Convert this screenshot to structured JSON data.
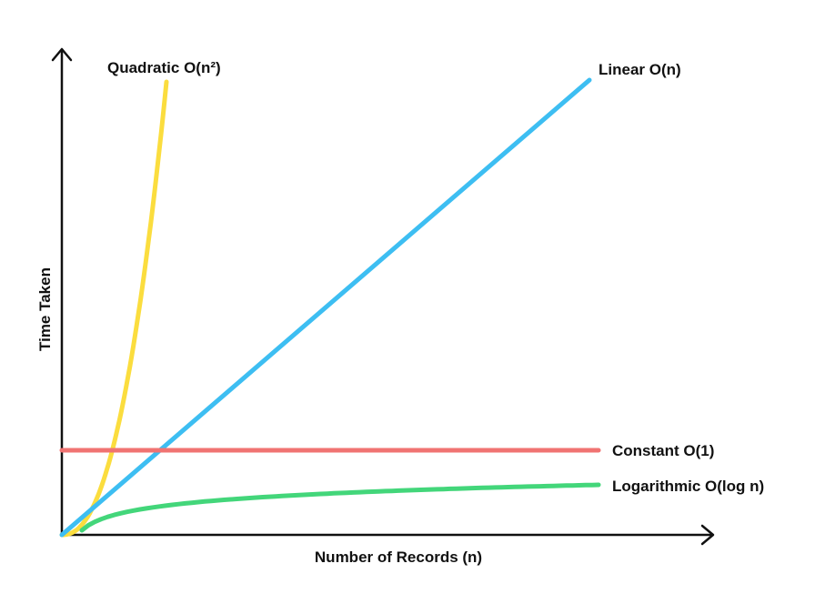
{
  "chart_data": {
    "type": "line",
    "title": "",
    "xlabel": "Number of Records (n)",
    "ylabel": "Time Taken",
    "grid": false,
    "legend": "inline labels at line ends",
    "series": [
      {
        "name": "Quadratic O(n²)",
        "color": "#FBDD3E",
        "shape": "quadratic"
      },
      {
        "name": "Linear O(n)",
        "color": "#3DBEF2",
        "shape": "linear"
      },
      {
        "name": "Constant O(1)",
        "color": "#F07372",
        "shape": "constant"
      },
      {
        "name": "Logarithmic O(log n)",
        "color": "#43D67A",
        "shape": "logarithmic"
      }
    ]
  }
}
